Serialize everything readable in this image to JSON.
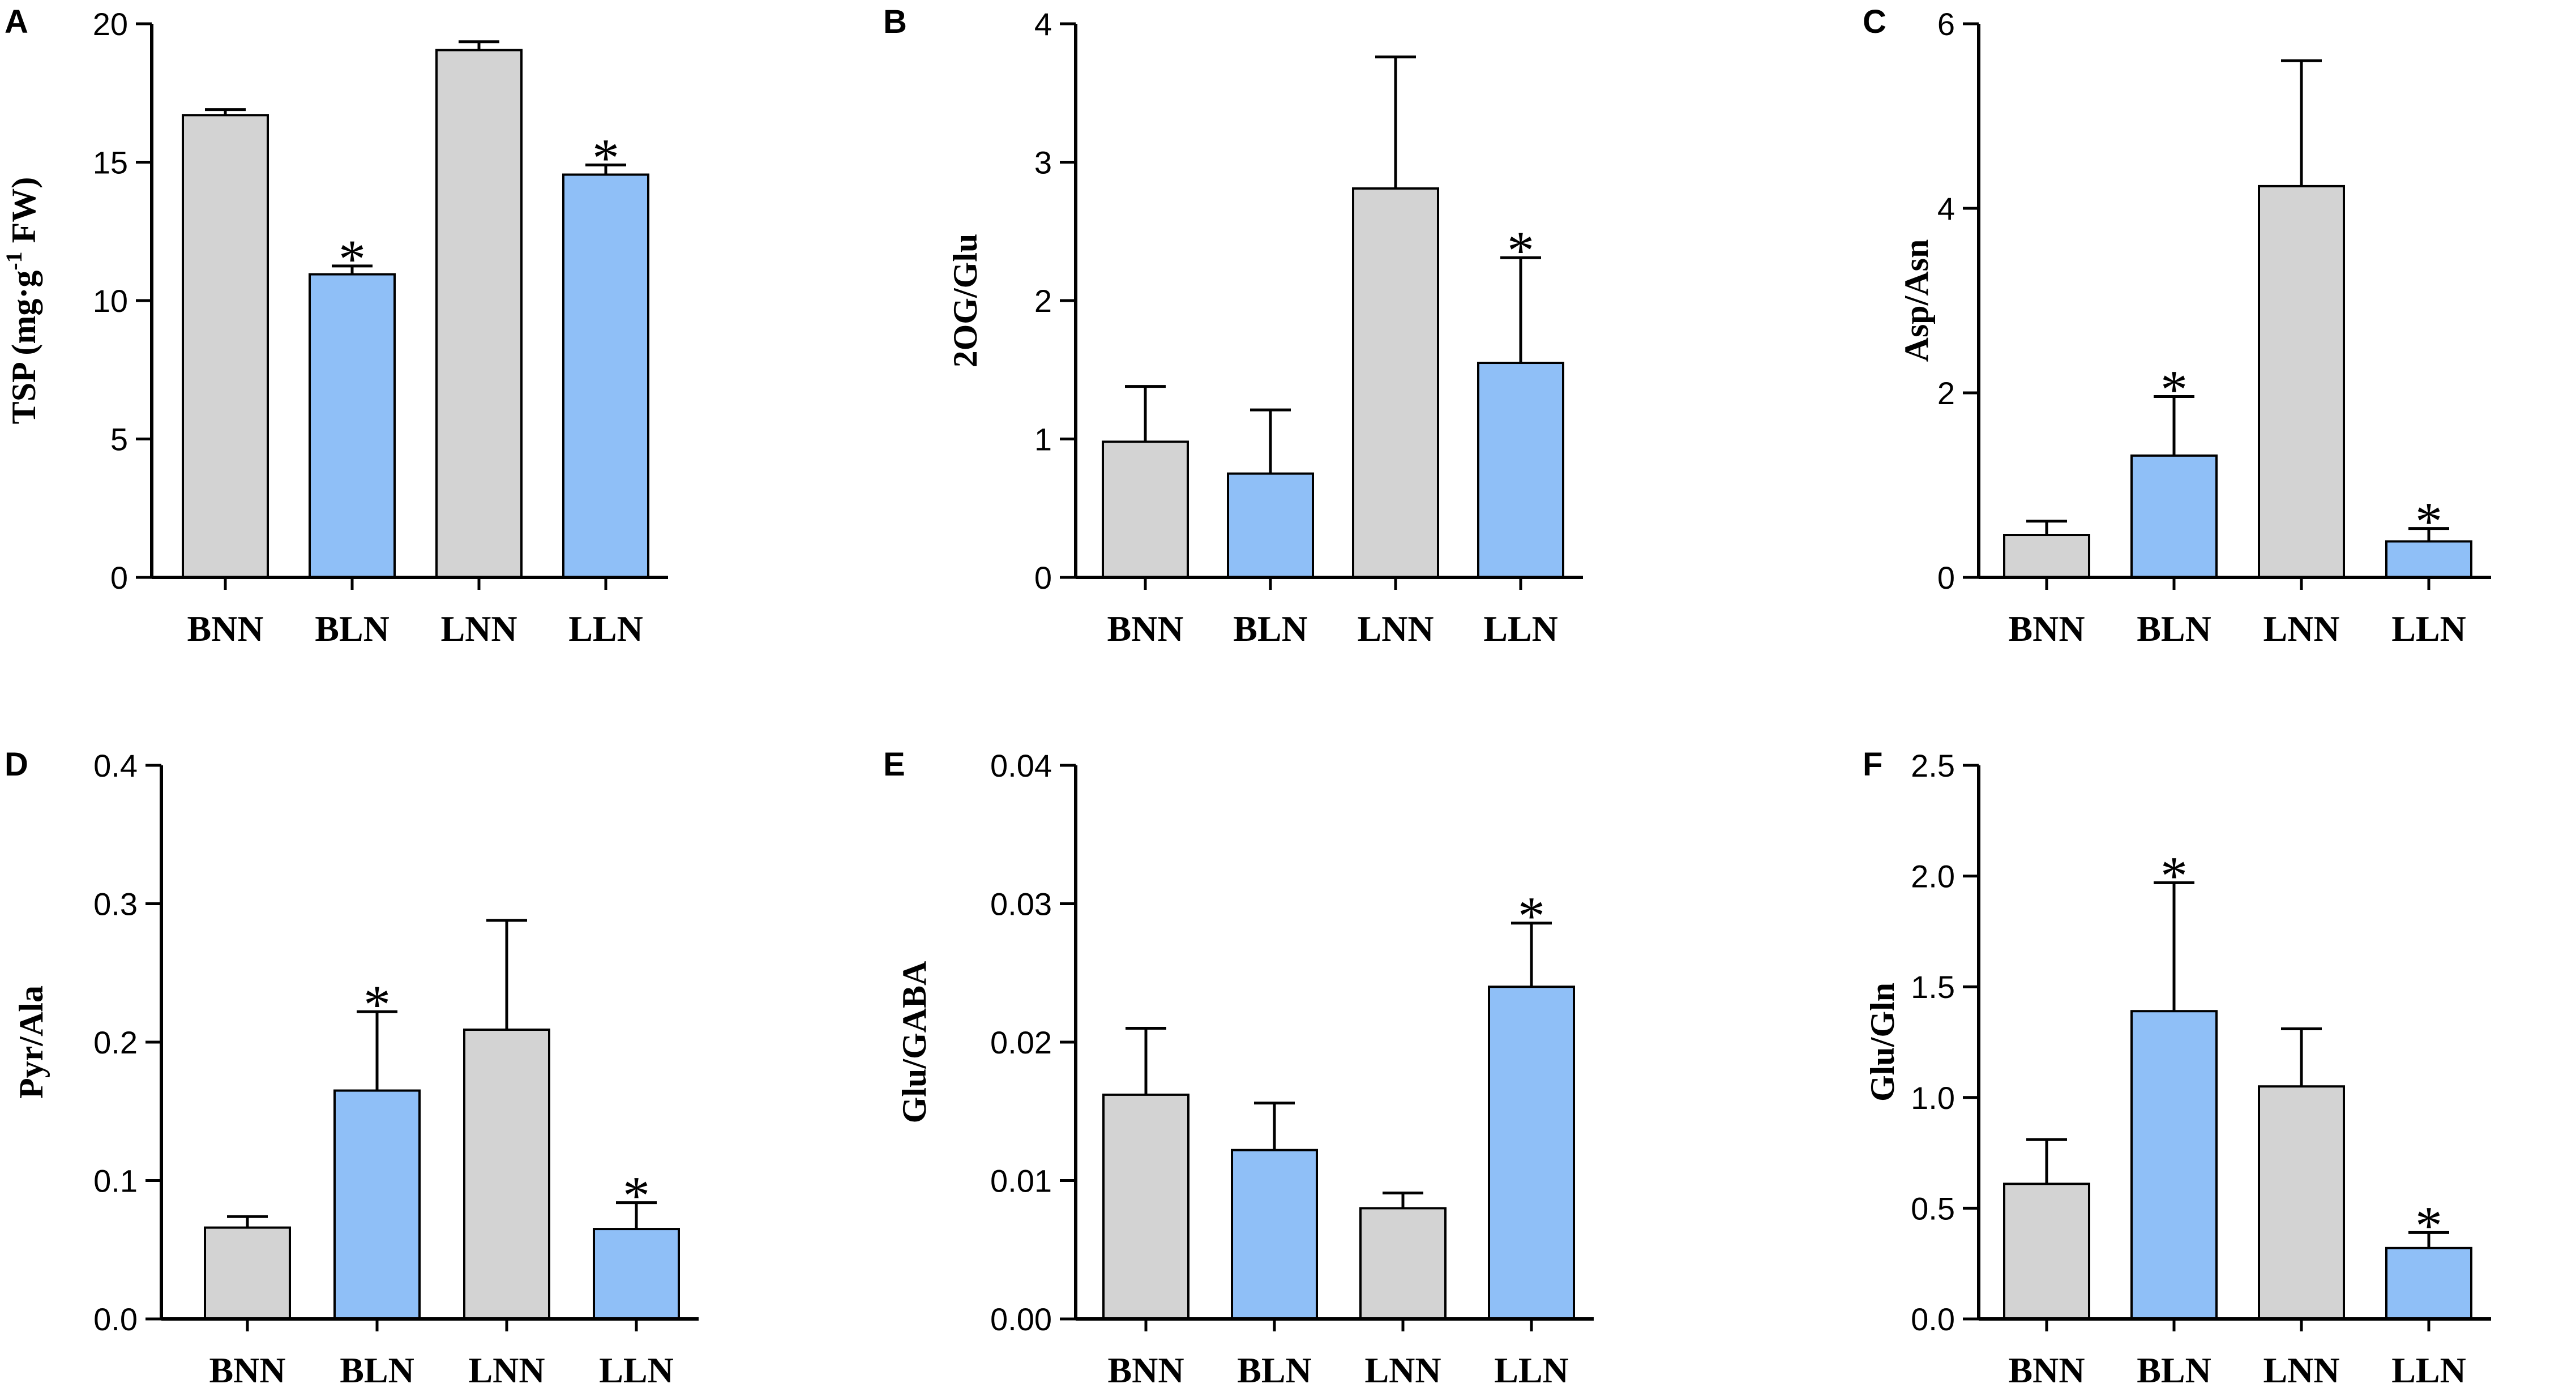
{
  "figure_colors": {
    "control": "#d3d3d3",
    "low_n": "#8fbff7",
    "stroke": "#000000"
  },
  "chart_data": [
    {
      "panel": "A",
      "type": "bar",
      "ylabel": "TSP (mg·g",
      "ylabel_sup": "-1",
      "ylabel_tail": " FW)",
      "categories": [
        "BNN",
        "BLN",
        "LNN",
        "LLN"
      ],
      "values": [
        16.7,
        10.95,
        19.05,
        14.55
      ],
      "errors": [
        0.2,
        0.3,
        0.3,
        0.35
      ],
      "significance": [
        "",
        "*",
        "",
        "*"
      ],
      "ylim": [
        0,
        20
      ],
      "yticks": [
        "0",
        "5",
        "10",
        "15",
        "20"
      ]
    },
    {
      "panel": "B",
      "type": "bar",
      "ylabel": "2OG/Glu",
      "categories": [
        "BNN",
        "BLN",
        "LNN",
        "LLN"
      ],
      "values": [
        0.98,
        0.75,
        2.81,
        1.55
      ],
      "errors": [
        0.4,
        0.46,
        0.95,
        0.76
      ],
      "significance": [
        "",
        "",
        "",
        "*"
      ],
      "ylim": [
        0,
        4
      ],
      "yticks": [
        "0",
        "1",
        "2",
        "3",
        "4"
      ]
    },
    {
      "panel": "C",
      "type": "bar",
      "ylabel": "Asp/Asn",
      "categories": [
        "BNN",
        "BLN",
        "LNN",
        "LLN"
      ],
      "values": [
        0.46,
        1.32,
        4.24,
        0.39
      ],
      "errors": [
        0.15,
        0.64,
        1.36,
        0.14
      ],
      "significance": [
        "",
        "*",
        "",
        "*"
      ],
      "ylim": [
        0,
        6
      ],
      "yticks": [
        "0",
        "2",
        "4",
        "6"
      ]
    },
    {
      "panel": "D",
      "type": "bar",
      "ylabel": "Pyr/Ala",
      "categories": [
        "BNN",
        "BLN",
        "LNN",
        "LLN"
      ],
      "values": [
        0.066,
        0.165,
        0.209,
        0.065
      ],
      "errors": [
        0.008,
        0.057,
        0.079,
        0.019
      ],
      "significance": [
        "",
        "*",
        "",
        "*"
      ],
      "ylim": [
        0,
        0.4
      ],
      "yticks": [
        "0.0",
        "0.1",
        "0.2",
        "0.3",
        "0.4"
      ]
    },
    {
      "panel": "E",
      "type": "bar",
      "ylabel": "Glu/GABA",
      "categories": [
        "BNN",
        "BLN",
        "LNN",
        "LLN"
      ],
      "values": [
        0.0162,
        0.0122,
        0.008,
        0.024
      ],
      "errors": [
        0.0048,
        0.0034,
        0.0011,
        0.0046
      ],
      "significance": [
        "",
        "",
        "",
        "*"
      ],
      "ylim": [
        0,
        0.04
      ],
      "yticks": [
        "0.00",
        "0.01",
        "0.02",
        "0.03",
        "0.04"
      ]
    },
    {
      "panel": "F",
      "type": "bar",
      "ylabel": "Glu/Gln",
      "categories": [
        "BNN",
        "BLN",
        "LNN",
        "LLN"
      ],
      "values": [
        0.61,
        1.39,
        1.05,
        0.32
      ],
      "errors": [
        0.2,
        0.58,
        0.26,
        0.07
      ],
      "significance": [
        "",
        "*",
        "",
        "*"
      ],
      "ylim": [
        0,
        2.5
      ],
      "yticks": [
        "0.0",
        "0.5",
        "1.0",
        "1.5",
        "2.0",
        "2.5"
      ]
    }
  ]
}
